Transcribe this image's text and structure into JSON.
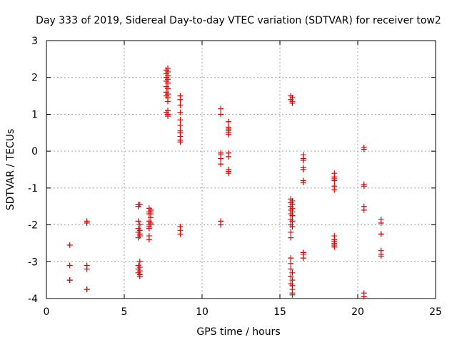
{
  "chart_data": {
    "type": "scatter",
    "title": "Day 333 of 2019, Sidereal Day-to-day VTEC variation (SDTVAR) for receiver tow2",
    "xlabel": "GPS time / hours",
    "ylabel": "SDTVAR / TECUs",
    "xlim": [
      0,
      25
    ],
    "ylim": [
      -4,
      3
    ],
    "xticks": [
      "0",
      "5",
      "10",
      "15",
      "20",
      "25"
    ],
    "yticks": [
      "-4",
      "-3",
      "-2",
      "-1",
      "0",
      "1",
      "2",
      "3"
    ],
    "grid": true,
    "marker": "plus",
    "color": "#e00000",
    "series": [
      {
        "name": "SDTVAR",
        "x": [
          1.5,
          1.5,
          1.5,
          1.5,
          2.6,
          2.6,
          2.6,
          2.6,
          2.6,
          2.6,
          5.9,
          5.9,
          5.9,
          5.9,
          5.9,
          5.9,
          5.9,
          5.9,
          5.9,
          6.0,
          6.0,
          6.0,
          6.0,
          6.0,
          6.0,
          6.0,
          6.0,
          6.0,
          6.0,
          6.6,
          6.6,
          6.6,
          6.6,
          6.6,
          6.6,
          6.6,
          6.6,
          6.6,
          6.7,
          6.7,
          6.7,
          6.7,
          6.7,
          6.7,
          7.7,
          7.7,
          7.7,
          7.7,
          7.7,
          7.7,
          7.7,
          7.7,
          7.8,
          7.8,
          7.8,
          7.8,
          7.8,
          7.8,
          7.8,
          7.8,
          7.8,
          7.8,
          7.8,
          7.8,
          8.6,
          8.6,
          8.6,
          8.6,
          8.6,
          8.6,
          8.6,
          8.6,
          8.6,
          8.6,
          8.6,
          8.6,
          8.6,
          8.6,
          11.2,
          11.2,
          11.2,
          11.2,
          11.2,
          11.2,
          11.2,
          11.2,
          11.7,
          11.7,
          11.7,
          11.7,
          11.7,
          11.7,
          11.7,
          11.7,
          11.7,
          11.7,
          11.7,
          15.7,
          15.7,
          15.7,
          15.7,
          15.7,
          15.7,
          15.7,
          15.7,
          15.7,
          15.7,
          15.7,
          15.7,
          15.7,
          15.7,
          15.7,
          15.7,
          15.8,
          15.8,
          15.8,
          15.8,
          15.8,
          15.8,
          15.8,
          15.8,
          15.8,
          15.8,
          15.8,
          15.8,
          15.8,
          15.8,
          15.8,
          15.8,
          16.5,
          16.5,
          16.5,
          16.5,
          16.5,
          16.5,
          16.5,
          16.5,
          16.5,
          16.5,
          18.5,
          18.5,
          18.5,
          18.5,
          18.5,
          18.5,
          18.5,
          18.5,
          18.5,
          18.5,
          18.5,
          18.5,
          20.4,
          20.4,
          20.4,
          20.4,
          20.4,
          20.4,
          20.4,
          20.4,
          21.5,
          21.5,
          21.5,
          21.5,
          21.5,
          21.5,
          21.5
        ],
        "y": [
          -2.55,
          -3.1,
          -3.5,
          -3.5,
          -1.9,
          -1.95,
          -3.1,
          -3.2,
          -3.75,
          -3.75,
          -1.45,
          -1.5,
          -1.9,
          -2.1,
          -2.2,
          -2.35,
          -3.1,
          -3.2,
          -3.3,
          -1.45,
          -2.15,
          -2.25,
          -3.25,
          -3.35,
          -3.4,
          -3.0,
          -3.15,
          -2.0,
          -2.3,
          -1.55,
          -1.65,
          -1.7,
          -1.9,
          -2.0,
          -2.05,
          -2.3,
          -2.4,
          -2.1,
          -1.6,
          -1.65,
          -1.8,
          -1.95,
          -2.0,
          -1.7,
          2.2,
          2.1,
          2.0,
          1.9,
          1.75,
          1.6,
          1.5,
          1.05,
          2.25,
          2.15,
          2.05,
          1.95,
          1.85,
          1.7,
          1.55,
          1.45,
          1.35,
          1.1,
          1.0,
          0.95,
          1.5,
          1.4,
          1.25,
          1.05,
          0.85,
          0.7,
          0.55,
          0.5,
          0.4,
          0.3,
          0.25,
          -2.05,
          -2.15,
          -2.25,
          1.15,
          1.0,
          -0.05,
          -0.1,
          -0.2,
          -0.35,
          -1.9,
          -2.0,
          0.8,
          0.65,
          0.6,
          0.55,
          0.5,
          0.45,
          -0.05,
          -0.15,
          -0.5,
          -0.55,
          -0.6,
          1.5,
          1.4,
          -1.3,
          -1.4,
          -1.5,
          -1.6,
          -1.7,
          -1.85,
          -2.0,
          -2.2,
          -2.35,
          -2.9,
          -3.05,
          -3.2,
          -3.4,
          -3.6,
          1.45,
          1.35,
          1.3,
          -1.35,
          -1.45,
          -1.55,
          -1.65,
          -1.75,
          -1.9,
          -2.05,
          -3.3,
          -3.5,
          -3.65,
          -3.75,
          -3.85,
          -3.9,
          -0.1,
          -0.2,
          -0.25,
          -0.45,
          -0.5,
          -0.8,
          -0.85,
          -2.75,
          -2.8,
          -2.9,
          -0.6,
          -0.7,
          -0.75,
          -0.8,
          -0.95,
          -1.05,
          -2.3,
          -2.4,
          -2.45,
          -2.55,
          -2.6,
          -2.5,
          0.05,
          0.1,
          -0.9,
          -0.95,
          -1.5,
          -1.6,
          -3.85,
          -3.95,
          -1.85,
          -1.95,
          -2.25,
          -2.25,
          -2.7,
          -2.8,
          -2.85
        ]
      }
    ]
  }
}
